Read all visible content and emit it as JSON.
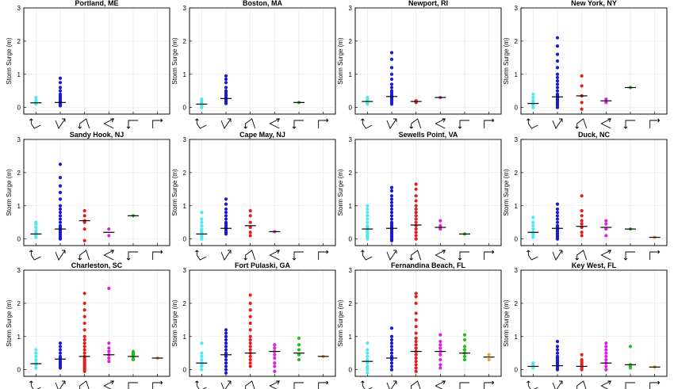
{
  "chart_data": {
    "type": "scatter",
    "ylabel": "Storm Surge (m)",
    "ylim": [
      -0.2,
      3
    ],
    "yticks": [
      0,
      1,
      2,
      3
    ],
    "categories": [
      "WNW-SW",
      "N-NE",
      "NNW-SW",
      "SW-NE",
      "W-S",
      "E-N"
    ],
    "category_colors": [
      "#4de8f0",
      "#1a1ad6",
      "#e02020",
      "#e020e0",
      "#20c020",
      "#f0a030"
    ],
    "grid": true,
    "panels": [
      {
        "title": "Portland, ME",
        "series": [
          {
            "points": [
              0.1,
              0.12,
              0.15,
              0.18,
              0.22,
              0.3
            ],
            "median": 0.14
          },
          {
            "points": [
              0.05,
              0.08,
              0.1,
              0.12,
              0.15,
              0.18,
              0.2,
              0.25,
              0.3,
              0.35,
              0.4,
              0.5,
              0.6,
              0.75,
              0.88
            ],
            "median": 0.15
          },
          {
            "points": [],
            "median": null
          },
          {
            "points": [],
            "median": null
          },
          {
            "points": [],
            "median": null
          },
          {
            "points": [],
            "median": null
          }
        ]
      },
      {
        "title": "Boston, MA",
        "series": [
          {
            "points": [
              0.0,
              0.05,
              0.08,
              0.1,
              0.15,
              0.2,
              0.25
            ],
            "median": 0.1
          },
          {
            "points": [
              0.12,
              0.15,
              0.2,
              0.25,
              0.3,
              0.35,
              0.4,
              0.45,
              0.5,
              0.6,
              0.75,
              0.85,
              0.95
            ],
            "median": 0.27
          },
          {
            "points": [],
            "median": null
          },
          {
            "points": [],
            "median": null
          },
          {
            "points": [
              0.15
            ],
            "median": 0.15
          },
          {
            "points": [],
            "median": null
          }
        ]
      },
      {
        "title": "Newport, RI",
        "series": [
          {
            "points": [
              0.1,
              0.15,
              0.18,
              0.22,
              0.25,
              0.3
            ],
            "median": 0.18
          },
          {
            "points": [
              0.1,
              0.15,
              0.2,
              0.25,
              0.3,
              0.35,
              0.4,
              0.45,
              0.5,
              0.6,
              0.7,
              0.85,
              1.0,
              1.2,
              1.45,
              1.65
            ],
            "median": 0.33
          },
          {
            "points": [
              0.15,
              0.2
            ],
            "median": 0.18
          },
          {
            "points": [
              0.3
            ],
            "median": 0.3
          },
          {
            "points": [],
            "median": null
          },
          {
            "points": [],
            "median": null
          }
        ]
      },
      {
        "title": "New York, NY",
        "series": [
          {
            "points": [
              0.0,
              0.05,
              0.1,
              0.15,
              0.2,
              0.3,
              0.4
            ],
            "median": 0.12
          },
          {
            "points": [
              0.0,
              0.05,
              0.1,
              0.15,
              0.2,
              0.25,
              0.3,
              0.35,
              0.4,
              0.5,
              0.6,
              0.7,
              0.8,
              0.9,
              1.0,
              1.2,
              1.4,
              1.6,
              1.85,
              2.1
            ],
            "median": 0.32
          },
          {
            "points": [
              -0.05,
              0.15,
              0.35,
              0.65,
              0.95
            ],
            "median": 0.35
          },
          {
            "points": [
              0.15,
              0.25
            ],
            "median": 0.2
          },
          {
            "points": [
              0.6
            ],
            "median": 0.6
          },
          {
            "points": [],
            "median": null
          }
        ]
      },
      {
        "title": "Sandy Hook, NJ",
        "series": [
          {
            "points": [
              0.05,
              0.1,
              0.15,
              0.2,
              0.25,
              0.35,
              0.45,
              0.5
            ],
            "median": 0.15
          },
          {
            "points": [
              0.0,
              0.05,
              0.1,
              0.15,
              0.2,
              0.25,
              0.3,
              0.35,
              0.4,
              0.5,
              0.6,
              0.7,
              0.8,
              0.9,
              1.0,
              1.2,
              1.4,
              1.6,
              1.85,
              2.25
            ],
            "median": 0.3
          },
          {
            "points": [
              -0.05,
              0.3,
              0.5,
              0.55,
              0.7,
              0.85
            ],
            "median": 0.55
          },
          {
            "points": [
              0.1,
              0.3
            ],
            "median": 0.2
          },
          {
            "points": [
              0.7
            ],
            "median": 0.7
          },
          {
            "points": [],
            "median": null
          }
        ]
      },
      {
        "title": "Cape May, NJ",
        "series": [
          {
            "points": [
              0.0,
              0.05,
              0.1,
              0.15,
              0.2,
              0.25,
              0.3,
              0.4,
              0.5,
              0.6,
              0.8
            ],
            "median": 0.15
          },
          {
            "points": [
              0.15,
              0.2,
              0.25,
              0.3,
              0.35,
              0.4,
              0.45,
              0.5,
              0.6,
              0.7,
              0.8,
              0.9,
              1.05,
              1.2
            ],
            "median": 0.32
          },
          {
            "points": [
              0.1,
              0.2,
              0.35,
              0.5,
              0.7,
              0.85
            ],
            "median": 0.4
          },
          {
            "points": [
              0.22
            ],
            "median": 0.22
          },
          {
            "points": [],
            "median": null
          },
          {
            "points": [],
            "median": null
          }
        ]
      },
      {
        "title": "Sewells Point, VA",
        "series": [
          {
            "points": [
              0.0,
              0.05,
              0.1,
              0.15,
              0.2,
              0.25,
              0.3,
              0.35,
              0.4,
              0.5,
              0.6,
              0.7,
              0.8,
              0.9,
              1.0
            ],
            "median": 0.3
          },
          {
            "points": [
              -0.05,
              0.0,
              0.05,
              0.1,
              0.15,
              0.2,
              0.25,
              0.3,
              0.35,
              0.4,
              0.45,
              0.5,
              0.6,
              0.7,
              0.8,
              0.9,
              1.0,
              1.1,
              1.2,
              1.3,
              1.45,
              1.55
            ],
            "median": 0.32
          },
          {
            "points": [
              0.0,
              0.1,
              0.2,
              0.3,
              0.4,
              0.5,
              0.6,
              0.7,
              0.8,
              0.9,
              1.0,
              1.15,
              1.3,
              1.5,
              1.65
            ],
            "median": 0.42
          },
          {
            "points": [
              0.3,
              0.4,
              0.55
            ],
            "median": 0.35
          },
          {
            "points": [
              0.15
            ],
            "median": 0.15
          },
          {
            "points": [],
            "median": null
          }
        ]
      },
      {
        "title": "Duck, NC",
        "series": [
          {
            "points": [
              0.05,
              0.1,
              0.15,
              0.2,
              0.3,
              0.4,
              0.5,
              0.65
            ],
            "median": 0.2
          },
          {
            "points": [
              0.0,
              0.05,
              0.1,
              0.15,
              0.2,
              0.25,
              0.3,
              0.35,
              0.4,
              0.5,
              0.6,
              0.7,
              0.8,
              0.9,
              1.05
            ],
            "median": 0.32
          },
          {
            "points": [
              0.1,
              0.2,
              0.35,
              0.45,
              0.55,
              0.7,
              0.85,
              1.3
            ],
            "median": 0.38
          },
          {
            "points": [
              0.1,
              0.3,
              0.45,
              0.55
            ],
            "median": 0.35
          },
          {
            "points": [
              0.3
            ],
            "median": 0.3
          },
          {
            "points": [
              0.05
            ],
            "median": 0.05
          }
        ]
      },
      {
        "title": "Charleston, SC",
        "series": [
          {
            "points": [
              0.05,
              0.15,
              0.2,
              0.3,
              0.4,
              0.5,
              0.6
            ],
            "median": 0.18
          },
          {
            "points": [
              0.05,
              0.1,
              0.15,
              0.2,
              0.25,
              0.3,
              0.35,
              0.4,
              0.5,
              0.6,
              0.7,
              0.8
            ],
            "median": 0.32
          },
          {
            "points": [
              -0.05,
              0.0,
              0.05,
              0.1,
              0.15,
              0.2,
              0.25,
              0.3,
              0.35,
              0.4,
              0.5,
              0.6,
              0.7,
              0.8,
              0.9,
              1.0,
              1.2,
              1.4,
              1.6,
              1.8,
              2.0,
              2.3
            ],
            "median": 0.4
          },
          {
            "points": [
              0.25,
              0.35,
              0.45,
              0.55,
              0.65,
              0.8,
              2.45
            ],
            "median": 0.45
          },
          {
            "points": [
              0.3,
              0.35,
              0.4,
              0.45,
              0.5,
              0.55
            ],
            "median": 0.4
          },
          {
            "points": [
              0.35
            ],
            "median": 0.35
          }
        ]
      },
      {
        "title": "Fort Pulaski, GA",
        "series": [
          {
            "points": [
              0.0,
              0.1,
              0.15,
              0.2,
              0.3,
              0.4,
              0.5,
              0.8
            ],
            "median": 0.2
          },
          {
            "points": [
              -0.1,
              0.0,
              0.1,
              0.2,
              0.3,
              0.4,
              0.5,
              0.6,
              0.7,
              0.8,
              0.9,
              1.0,
              1.1,
              1.2
            ],
            "median": 0.45
          },
          {
            "points": [
              0.1,
              0.2,
              0.3,
              0.4,
              0.5,
              0.6,
              0.7,
              0.8,
              0.9,
              1.0,
              1.2,
              1.4,
              1.6,
              1.8,
              2.0,
              2.25
            ],
            "median": 0.5
          },
          {
            "points": [
              -0.05,
              0.1,
              0.2,
              0.35,
              0.45,
              0.55,
              0.65,
              0.75
            ],
            "median": 0.55
          },
          {
            "points": [
              0.3,
              0.45,
              0.6,
              0.75,
              0.95
            ],
            "median": 0.5
          },
          {
            "points": [
              0.4
            ],
            "median": 0.4
          }
        ]
      },
      {
        "title": "Fernandina Beach, FL",
        "series": [
          {
            "points": [
              -0.1,
              0.0,
              0.05,
              0.1,
              0.2,
              0.3,
              0.4,
              0.5,
              0.6,
              0.8
            ],
            "median": 0.25
          },
          {
            "points": [
              0.0,
              0.1,
              0.2,
              0.3,
              0.4,
              0.5,
              0.6,
              0.7,
              0.8,
              0.9,
              1.0,
              1.25
            ],
            "median": 0.35
          },
          {
            "points": [
              -0.05,
              0.05,
              0.15,
              0.25,
              0.35,
              0.45,
              0.55,
              0.65,
              0.75,
              0.85,
              0.95,
              1.1,
              1.3,
              1.5,
              1.7,
              2.0,
              2.2,
              2.3
            ],
            "median": 0.55
          },
          {
            "points": [
              0.05,
              0.15,
              0.3,
              0.45,
              0.55,
              0.65,
              0.75,
              0.85,
              1.05
            ],
            "median": 0.55
          },
          {
            "points": [
              0.3,
              0.4,
              0.5,
              0.6,
              0.7,
              0.9,
              1.05
            ],
            "median": 0.5
          },
          {
            "points": [
              0.3,
              0.45
            ],
            "median": 0.38
          }
        ]
      },
      {
        "title": "Key West, FL",
        "series": [
          {
            "points": [
              0.05,
              0.1,
              0.15,
              0.2
            ],
            "median": 0.1
          },
          {
            "points": [
              0.0,
              0.05,
              0.1,
              0.15,
              0.2,
              0.25,
              0.3,
              0.35,
              0.4,
              0.5,
              0.6,
              0.7,
              0.85
            ],
            "median": 0.12
          },
          {
            "points": [
              0.0,
              0.05,
              0.1,
              0.15,
              0.2,
              0.25,
              0.3,
              0.45
            ],
            "median": 0.1
          },
          {
            "points": [
              0.0,
              0.1,
              0.2,
              0.3,
              0.4,
              0.5,
              0.6,
              0.7,
              0.8
            ],
            "median": 0.2
          },
          {
            "points": [
              0.05,
              0.1,
              0.15,
              0.7
            ],
            "median": 0.15
          },
          {
            "points": [
              0.08
            ],
            "median": 0.08
          }
        ]
      }
    ]
  }
}
